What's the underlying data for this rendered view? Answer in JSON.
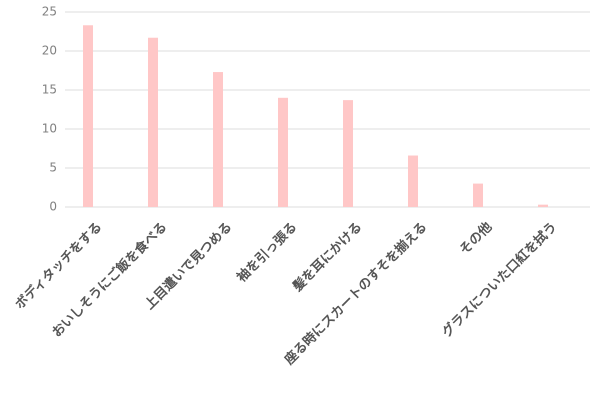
{
  "chart_data": {
    "type": "bar",
    "categories": [
      "ボディタッチをする",
      "おいしそうにご飯を食べる",
      "上目遣いで見つめる",
      "袖を引っ張る",
      "髪を耳にかける",
      "座る時にスカートのすそを揃える",
      "その他",
      "グラスについた口紅を拭う"
    ],
    "values": [
      23.3,
      21.7,
      17.3,
      14.0,
      13.7,
      6.6,
      3.0,
      0.3
    ],
    "color": "#ffc7c7",
    "ylim": [
      0,
      25
    ],
    "yticks": [
      0,
      5,
      10,
      15,
      20,
      25
    ],
    "grid": true
  }
}
